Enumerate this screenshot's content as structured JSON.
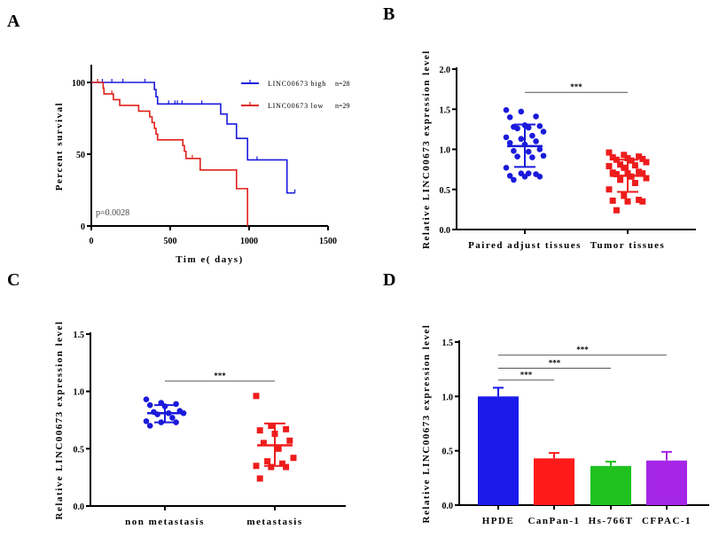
{
  "chart_data": [
    {
      "panel": "A",
      "type": "line",
      "subtype": "kaplan-meier",
      "xlabel": "Tim e( days)",
      "ylabel": "Percent survival",
      "xlim": [
        0,
        1500
      ],
      "ylim": [
        0,
        100
      ],
      "xticks": [
        "0",
        "500",
        "1000",
        "1500"
      ],
      "yticks": [
        "0",
        "50",
        "100"
      ],
      "annotation": "p=0.0028",
      "legend_position": "top-right",
      "series": [
        {
          "name": "LINC00673 high",
          "n_label": "n=28",
          "color": "#1a1adb",
          "steps": [
            [
              0,
              100
            ],
            [
              400,
              95
            ],
            [
              410,
              90
            ],
            [
              420,
              85
            ],
            [
              820,
              78
            ],
            [
              860,
              71
            ],
            [
              920,
              61
            ],
            [
              990,
              46
            ],
            [
              1240,
              23
            ],
            [
              1290,
              23
            ]
          ],
          "censored": [
            70,
            130,
            200,
            340,
            490,
            530,
            545,
            575,
            700,
            1050,
            1290
          ]
        },
        {
          "name": "LINC00673 low",
          "n_label": "n=29",
          "color": "#e0201b",
          "steps": [
            [
              0,
              100
            ],
            [
              75,
              96
            ],
            [
              80,
              92
            ],
            [
              140,
              88
            ],
            [
              180,
              84
            ],
            [
              300,
              80
            ],
            [
              370,
              76
            ],
            [
              385,
              72
            ],
            [
              400,
              68
            ],
            [
              410,
              64
            ],
            [
              420,
              60
            ],
            [
              580,
              56
            ],
            [
              590,
              52
            ],
            [
              600,
              47
            ],
            [
              690,
              39
            ],
            [
              920,
              26
            ],
            [
              990,
              0
            ]
          ],
          "censored": [
            40,
            130,
            640
          ]
        }
      ]
    },
    {
      "panel": "B",
      "type": "scatter",
      "ylabel": "Relative LINC00673 expression level",
      "ylim": [
        0,
        2.0
      ],
      "yticks": [
        "0.0",
        "0.5",
        "1.0",
        "1.5",
        "2.0"
      ],
      "categories": [
        "Paired adjust tissues",
        "Tumor tissues"
      ],
      "significance": [
        {
          "from": 0,
          "to": 1,
          "label": "***",
          "y": 1.71
        }
      ],
      "series": [
        {
          "color": "#1a1adb",
          "marker": "circle",
          "mean": 1.04,
          "sd_low": 0.78,
          "sd_high": 1.31,
          "values": [
            1.49,
            1.47,
            1.41,
            1.4,
            1.3,
            1.29,
            1.28,
            1.27,
            1.22,
            1.26,
            1.17,
            1.15,
            1.13,
            1.1,
            1.08,
            1.06,
            1.0,
            0.98,
            0.97,
            0.92,
            0.91,
            0.9,
            0.77,
            0.7,
            0.69,
            0.67,
            0.66,
            0.66,
            0.62,
            0.7
          ]
        },
        {
          "color": "#ee1c1c",
          "marker": "square",
          "mean": 0.67,
          "sd_low": 0.47,
          "sd_high": 0.87,
          "values": [
            0.96,
            0.93,
            0.91,
            0.9,
            0.89,
            0.88,
            0.87,
            0.86,
            0.84,
            0.81,
            0.8,
            0.79,
            0.77,
            0.72,
            0.71,
            0.7,
            0.7,
            0.69,
            0.66,
            0.64,
            0.62,
            0.58,
            0.5,
            0.42,
            0.37,
            0.36,
            0.35,
            0.35,
            0.24
          ]
        }
      ]
    },
    {
      "panel": "C",
      "type": "scatter",
      "ylabel": "Relative LINC00673 expression level",
      "ylim": [
        0,
        1.5
      ],
      "yticks": [
        "0.0",
        "0.5",
        "1.0",
        "1.5"
      ],
      "categories": [
        "non metastasis",
        "metastasis"
      ],
      "significance": [
        {
          "from": 0,
          "to": 1,
          "label": "***",
          "y": 1.09
        }
      ],
      "series": [
        {
          "color": "#1a1adb",
          "marker": "circle",
          "mean": 0.81,
          "sd_low": 0.73,
          "sd_high": 0.88,
          "values": [
            0.93,
            0.9,
            0.89,
            0.88,
            0.87,
            0.83,
            0.82,
            0.81,
            0.81,
            0.8,
            0.77,
            0.74,
            0.73,
            0.73,
            0.7
          ]
        },
        {
          "color": "#ee1c1c",
          "marker": "square",
          "mean": 0.53,
          "sd_low": 0.35,
          "sd_high": 0.72,
          "values": [
            0.96,
            0.7,
            0.67,
            0.66,
            0.63,
            0.57,
            0.55,
            0.5,
            0.42,
            0.39,
            0.37,
            0.35,
            0.34,
            0.34,
            0.24
          ]
        }
      ]
    },
    {
      "panel": "D",
      "type": "bar",
      "ylabel": "Relative LINC00673 expression level",
      "ylim": [
        0,
        1.5
      ],
      "yticks": [
        "0.0",
        "0.5",
        "1.0",
        "1.5"
      ],
      "categories": [
        "HPDE",
        "CanPan-1",
        "Hs-766T",
        "CFPAC-1"
      ],
      "values": [
        1.0,
        0.43,
        0.36,
        0.41
      ],
      "errors": [
        0.08,
        0.05,
        0.04,
        0.08
      ],
      "colors": [
        "#1a1aeb",
        "#ff1a1a",
        "#1fc21f",
        "#a526e6"
      ],
      "significance": [
        {
          "from": 0,
          "to": 1,
          "label": "***",
          "y": 1.15
        },
        {
          "from": 0,
          "to": 2,
          "label": "***",
          "y": 1.26
        },
        {
          "from": 0,
          "to": 3,
          "label": "***",
          "y": 1.38
        }
      ]
    }
  ]
}
